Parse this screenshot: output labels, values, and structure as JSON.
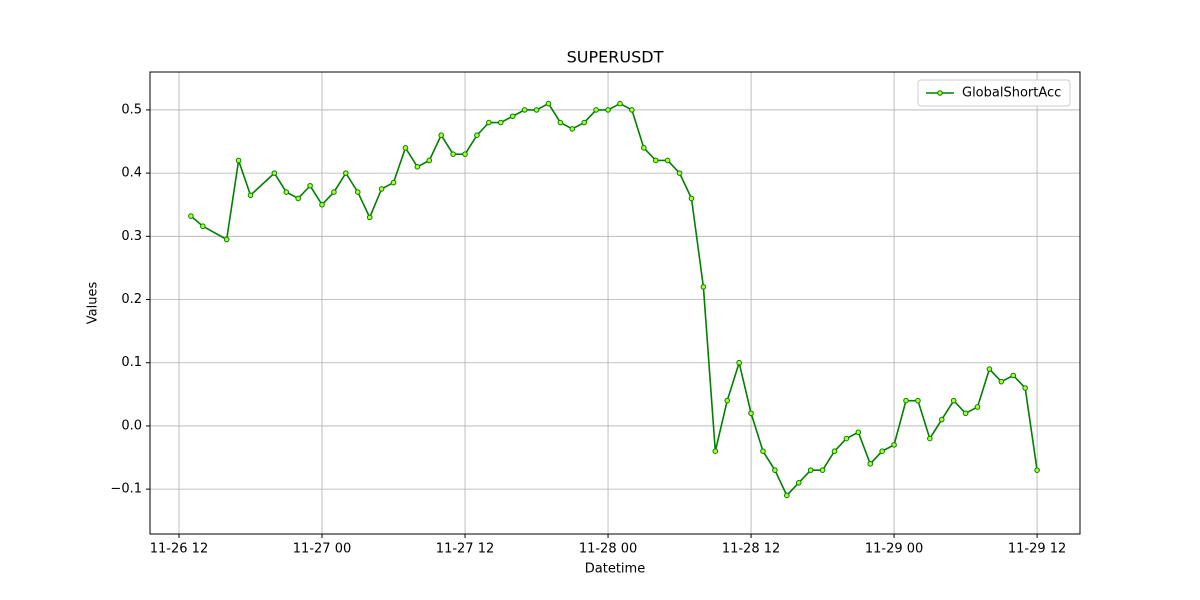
{
  "chart_data": {
    "type": "line",
    "title": "SUPERUSDT",
    "x_label": "Datetime",
    "y_label": "Values",
    "x": [
      "11-26 13",
      "11-26 14",
      "11-26 16",
      "11-26 17",
      "11-26 18",
      "11-26 20",
      "11-26 21",
      "11-26 22",
      "11-26 23",
      "11-27 00",
      "11-27 01",
      "11-27 02",
      "11-27 03",
      "11-27 04",
      "11-27 05",
      "11-27 06",
      "11-27 07",
      "11-27 08",
      "11-27 09",
      "11-27 10",
      "11-27 11",
      "11-27 12",
      "11-27 13",
      "11-27 14",
      "11-27 15",
      "11-27 16",
      "11-27 17",
      "11-27 18",
      "11-27 19",
      "11-27 20",
      "11-27 21",
      "11-27 22",
      "11-27 23",
      "11-28 00",
      "11-28 01",
      "11-28 02",
      "11-28 03",
      "11-28 04",
      "11-28 05",
      "11-28 06",
      "11-28 07",
      "11-28 08",
      "11-28 09",
      "11-28 10",
      "11-28 11",
      "11-28 12",
      "11-28 13",
      "11-28 14",
      "11-28 15",
      "11-28 16",
      "11-28 17",
      "11-28 18",
      "11-28 19",
      "11-28 20",
      "11-28 21",
      "11-28 22",
      "11-28 23",
      "11-29 00",
      "11-29 01",
      "11-29 02",
      "11-29 03",
      "11-29 04",
      "11-29 05",
      "11-29 06",
      "11-29 07",
      "11-29 08",
      "11-29 09",
      "11-29 10",
      "11-29 11",
      "11-29 12"
    ],
    "series": [
      {
        "name": "GlobalShortAcc",
        "color": "#008000",
        "marker_color": "#adff2f",
        "values": [
          0.332,
          0.316,
          0.295,
          0.42,
          0.365,
          0.4,
          0.37,
          0.36,
          0.38,
          0.35,
          0.37,
          0.4,
          0.37,
          0.33,
          0.375,
          0.385,
          0.44,
          0.41,
          0.42,
          0.46,
          0.43,
          0.43,
          0.46,
          0.48,
          0.48,
          0.49,
          0.5,
          0.5,
          0.51,
          0.48,
          0.47,
          0.48,
          0.5,
          0.5,
          0.51,
          0.5,
          0.44,
          0.42,
          0.42,
          0.4,
          0.36,
          0.22,
          -0.04,
          0.04,
          0.1,
          0.02,
          -0.04,
          -0.07,
          -0.11,
          -0.09,
          -0.07,
          -0.07,
          -0.04,
          -0.02,
          -0.01,
          -0.06,
          -0.04,
          -0.03,
          0.04,
          0.04,
          -0.02,
          0.01,
          0.04,
          0.02,
          0.03,
          0.09,
          0.07,
          0.08,
          0.06,
          -0.07
        ]
      }
    ],
    "xlim": [
      "11-26 09:34",
      "11-29 15:36"
    ],
    "xticks": [
      "11-26 12",
      "11-27 00",
      "11-27 12",
      "11-28 00",
      "11-28 12",
      "11-29 00",
      "11-29 12"
    ],
    "ylim": [
      -0.171,
      0.56
    ],
    "yticks": [
      {
        "value": -0.1,
        "label": "−0.1"
      },
      {
        "value": 0,
        "label": "0.0"
      },
      0.1,
      0.2,
      0.3,
      0.4,
      0.5
    ],
    "grid": true,
    "legend": "upper right"
  }
}
